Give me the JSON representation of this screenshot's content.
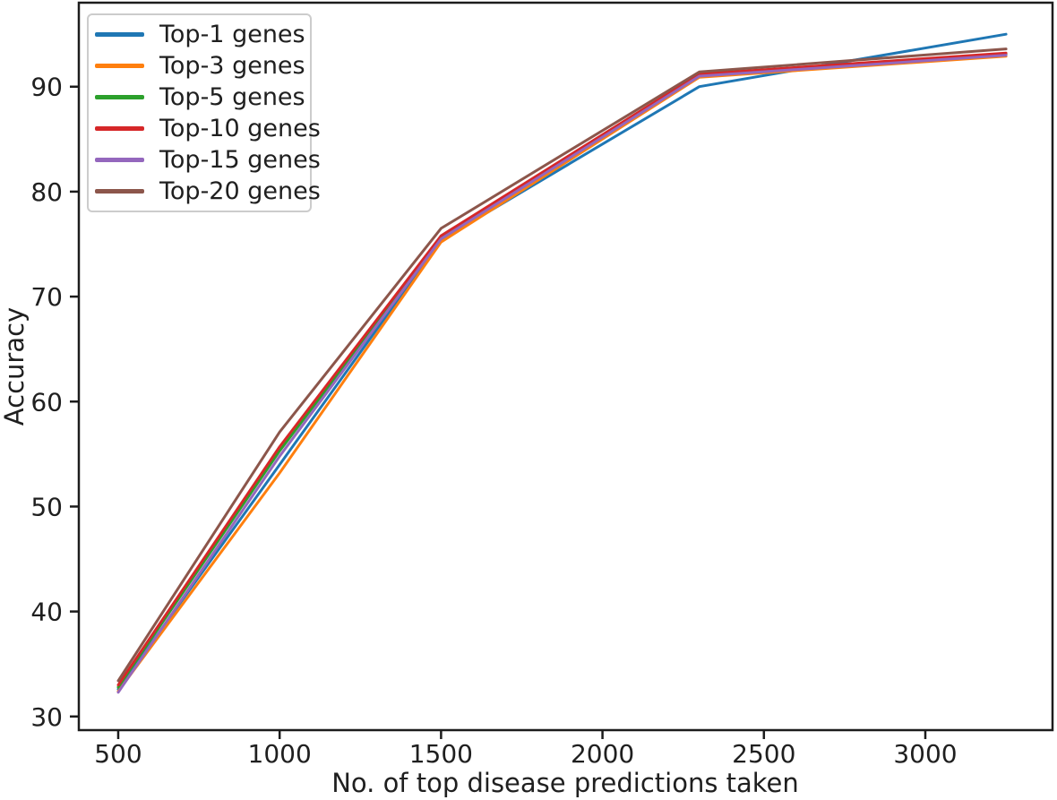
{
  "chart_data": {
    "type": "line",
    "title": "",
    "xlabel": "No. of top disease predictions taken",
    "ylabel": "Accuracy",
    "x": [
      500,
      1000,
      1500,
      2300,
      3250
    ],
    "series": [
      {
        "name": "Top-1 genes",
        "color": "#1f77b4",
        "values": [
          32.6,
          54.0,
          75.4,
          90.0,
          95.0
        ]
      },
      {
        "name": "Top-3 genes",
        "color": "#ff7f0e",
        "values": [
          32.4,
          53.2,
          75.2,
          90.9,
          92.9
        ]
      },
      {
        "name": "Top-5 genes",
        "color": "#2ca02c",
        "values": [
          32.8,
          55.3,
          75.6,
          91.1,
          93.1
        ]
      },
      {
        "name": "Top-10 genes",
        "color": "#d62728",
        "values": [
          33.0,
          55.7,
          75.8,
          91.2,
          93.2
        ]
      },
      {
        "name": "Top-15 genes",
        "color": "#9467bd",
        "values": [
          32.3,
          54.8,
          75.5,
          91.0,
          93.0
        ]
      },
      {
        "name": "Top-20 genes",
        "color": "#8c564b",
        "values": [
          33.4,
          57.1,
          76.5,
          91.4,
          93.6
        ]
      }
    ],
    "x_ticks": [
      500,
      1000,
      1500,
      2000,
      2500,
      3000
    ],
    "y_ticks": [
      30,
      40,
      50,
      60,
      70,
      80,
      90
    ],
    "xlim": [
      378,
      3394
    ],
    "ylim": [
      28.7,
      98.0
    ],
    "grid": false,
    "legend_position": "upper left",
    "axis_color": "#1c1c1c",
    "text_color": "#1f1f1f"
  }
}
